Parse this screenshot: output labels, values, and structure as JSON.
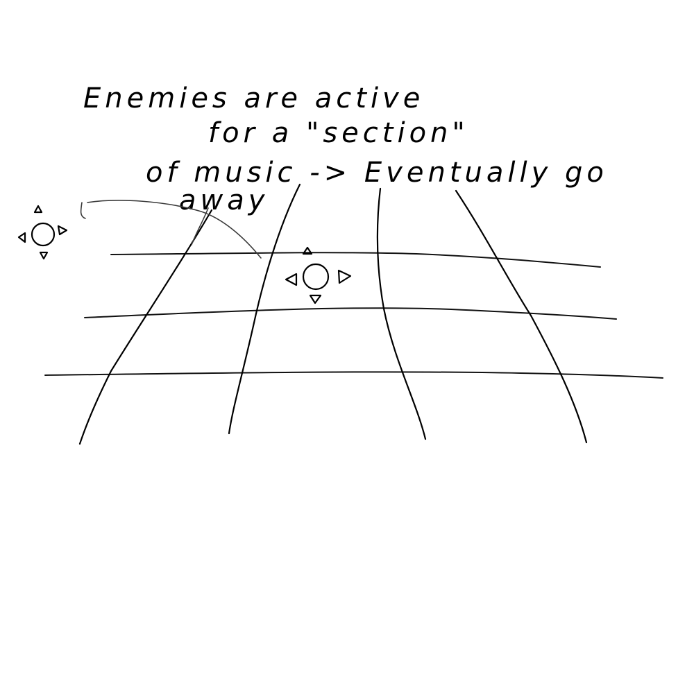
{
  "canvas": {
    "background": "#ffffff",
    "ink_color": "#000000"
  },
  "note": {
    "line1": "Enemies are active",
    "line2": "for a \"section\"",
    "line3": "of music -> Eventually go",
    "line4": "away"
  },
  "grid": {
    "horizontal_lines": 3,
    "vertical_lines": 4
  },
  "sprites": [
    {
      "name": "enemy-offgrid",
      "icon": "circle-with-four-arrows-icon"
    },
    {
      "name": "enemy-on-grid",
      "icon": "circle-with-four-arrows-icon"
    }
  ]
}
